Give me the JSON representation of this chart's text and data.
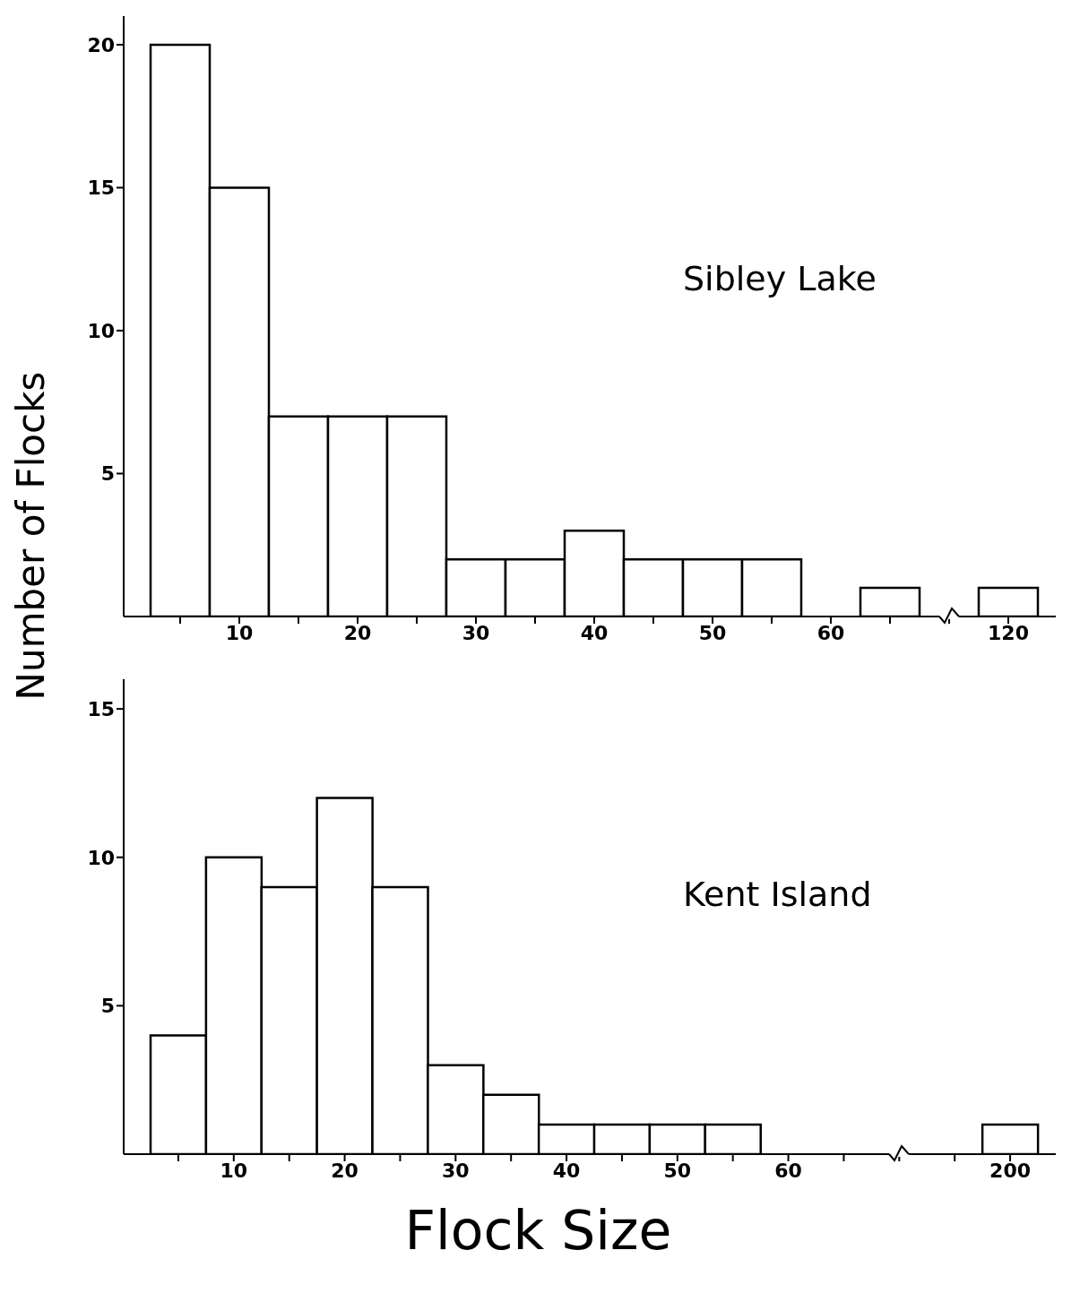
{
  "chart_data": [
    {
      "type": "bar",
      "ylabel": "Number of Flocks",
      "annotations": [
        "Sibley Lake"
      ],
      "color": "#ffffff",
      "categories": [
        null,
        "10",
        null,
        "20",
        null,
        "30",
        null,
        "40",
        null,
        "50",
        null,
        "60",
        null,
        null,
        "120"
      ],
      "values": [
        20,
        15,
        7,
        7,
        7,
        2,
        2,
        3,
        2,
        2,
        2,
        0,
        1,
        null,
        1
      ],
      "ylim": [
        0,
        21
      ],
      "yticks": [
        5,
        10,
        15,
        20
      ]
    },
    {
      "type": "bar",
      "xlabel": "Flock Size",
      "annotations": [
        "Kent Island"
      ],
      "color": "#ffffff",
      "categories": [
        null,
        "10",
        null,
        "20",
        null,
        "30",
        null,
        "40",
        null,
        "50",
        null,
        "60",
        null,
        null,
        null,
        "200"
      ],
      "values": [
        4,
        10,
        9,
        12,
        9,
        3,
        2,
        1,
        1,
        1,
        1,
        0,
        0,
        null,
        null,
        1
      ],
      "ylim": [
        0,
        16
      ],
      "yticks": [
        5,
        10,
        15
      ]
    }
  ]
}
